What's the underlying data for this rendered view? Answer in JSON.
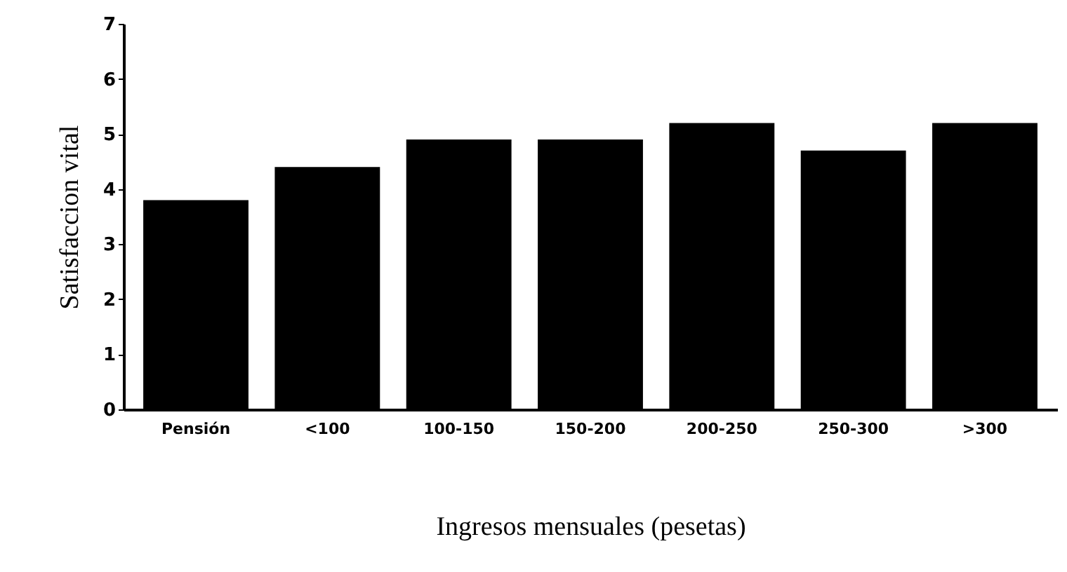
{
  "chart_data": {
    "type": "bar",
    "xlabel": "Ingresos mensuales (pesetas)",
    "ylabel": "Satisfaccion vital",
    "categories": [
      "Pensión",
      "<100",
      "100-150",
      "150-200",
      "200-250",
      "250-300",
      ">300"
    ],
    "values": [
      3.8,
      4.4,
      4.9,
      4.9,
      5.2,
      4.7,
      5.2
    ],
    "color": "#000000",
    "ylim": [
      0,
      7
    ],
    "yticks": [
      0,
      1,
      2,
      3,
      4,
      5,
      6,
      7
    ]
  }
}
